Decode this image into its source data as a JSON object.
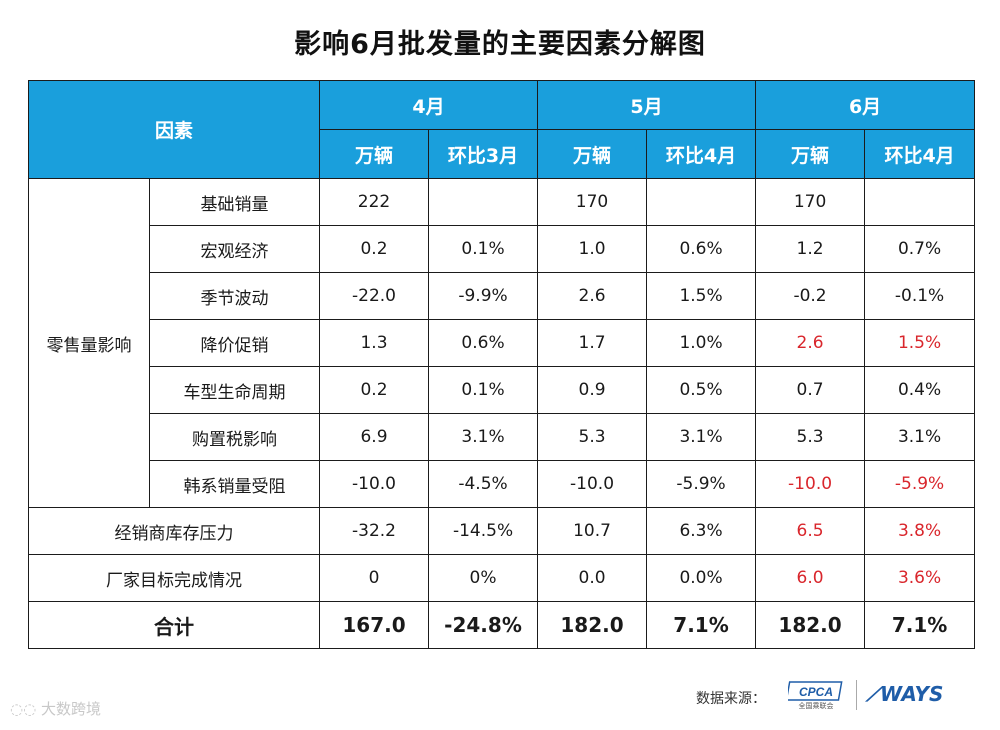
{
  "title": "影响6月批发量的主要因素分解图",
  "header": {
    "factor": "因素",
    "months": [
      "4月",
      "5月",
      "6月"
    ],
    "sub": [
      "万辆",
      "环比3月",
      "万辆",
      "环比4月",
      "万辆",
      "环比4月"
    ]
  },
  "group_retail": "零售量影响",
  "rows": [
    {
      "label": "基础销量",
      "cells": [
        "222",
        "",
        "170",
        "",
        "170",
        ""
      ]
    },
    {
      "label": "宏观经济",
      "cells": [
        "0.2",
        "0.1%",
        "1.0",
        "0.6%",
        "1.2",
        "0.7%"
      ]
    },
    {
      "label": "季节波动",
      "cells": [
        "-22.0",
        "-9.9%",
        "2.6",
        "1.5%",
        "-0.2",
        "-0.1%"
      ]
    },
    {
      "label": "降价促销",
      "cells": [
        "1.3",
        "0.6%",
        "1.7",
        "1.0%",
        "2.6",
        "1.5%"
      ]
    },
    {
      "label": "车型生命周期",
      "cells": [
        "0.2",
        "0.1%",
        "0.9",
        "0.5%",
        "0.7",
        "0.4%"
      ]
    },
    {
      "label": "购置税影响",
      "cells": [
        "6.9",
        "3.1%",
        "5.3",
        "3.1%",
        "5.3",
        "3.1%"
      ]
    },
    {
      "label": "韩系销量受阻",
      "cells": [
        "-10.0",
        "-4.5%",
        "-10.0",
        "-5.9%",
        "-10.0",
        "-5.9%"
      ]
    }
  ],
  "rows_wide": [
    {
      "label": "经销商库存压力",
      "cells": [
        "-32.2",
        "-14.5%",
        "10.7",
        "6.3%",
        "6.5",
        "3.8%"
      ]
    },
    {
      "label": "厂家目标完成情况",
      "cells": [
        "0",
        "0%",
        "0.0",
        "0.0%",
        "6.0",
        "3.6%"
      ]
    }
  ],
  "total": {
    "label": "合计",
    "cells": [
      "167.0",
      "-24.8%",
      "182.0",
      "7.1%",
      "182.0",
      "7.1%"
    ]
  },
  "highlight_color": "#d9262c",
  "header_color": "#1a9fdc",
  "footer": {
    "source_label": "数据来源：",
    "logo_cpca": "CPCA",
    "logo_cpca_sub": "全国乘联会",
    "logo_ways": "WAYS",
    "watermark": "大数跨境"
  }
}
